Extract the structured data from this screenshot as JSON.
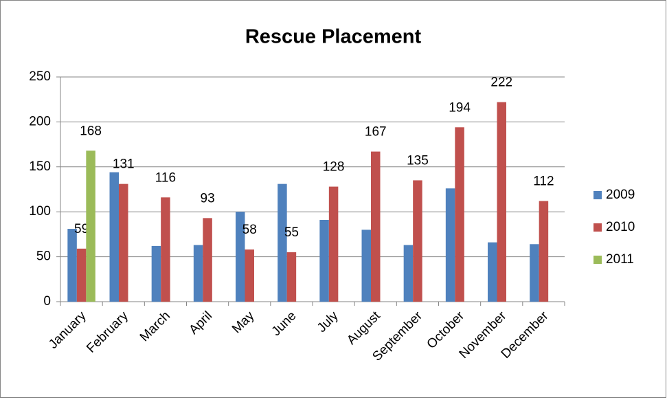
{
  "chart_data": {
    "type": "bar",
    "title": "Rescue Placement",
    "categories": [
      "January",
      "February",
      "March",
      "April",
      "May",
      "June",
      "July",
      "August",
      "September",
      "October",
      "November",
      "December"
    ],
    "series": [
      {
        "name": "2009",
        "color": "#4f81bd",
        "show_values": false,
        "values": [
          81,
          144,
          62,
          63,
          100,
          131,
          91,
          80,
          63,
          126,
          66,
          64
        ]
      },
      {
        "name": "2010",
        "color": "#c0504d",
        "show_values": true,
        "values": [
          59,
          131,
          116,
          93,
          58,
          55,
          128,
          167,
          135,
          194,
          222,
          112
        ]
      },
      {
        "name": "2011",
        "color": "#9bbb59",
        "show_values": true,
        "values": [
          168,
          null,
          null,
          null,
          null,
          null,
          null,
          null,
          null,
          null,
          null,
          null
        ]
      }
    ],
    "ylim": [
      0,
      250
    ],
    "yticks": [
      0,
      50,
      100,
      150,
      200,
      250
    ],
    "grid": true,
    "legend": "right"
  }
}
